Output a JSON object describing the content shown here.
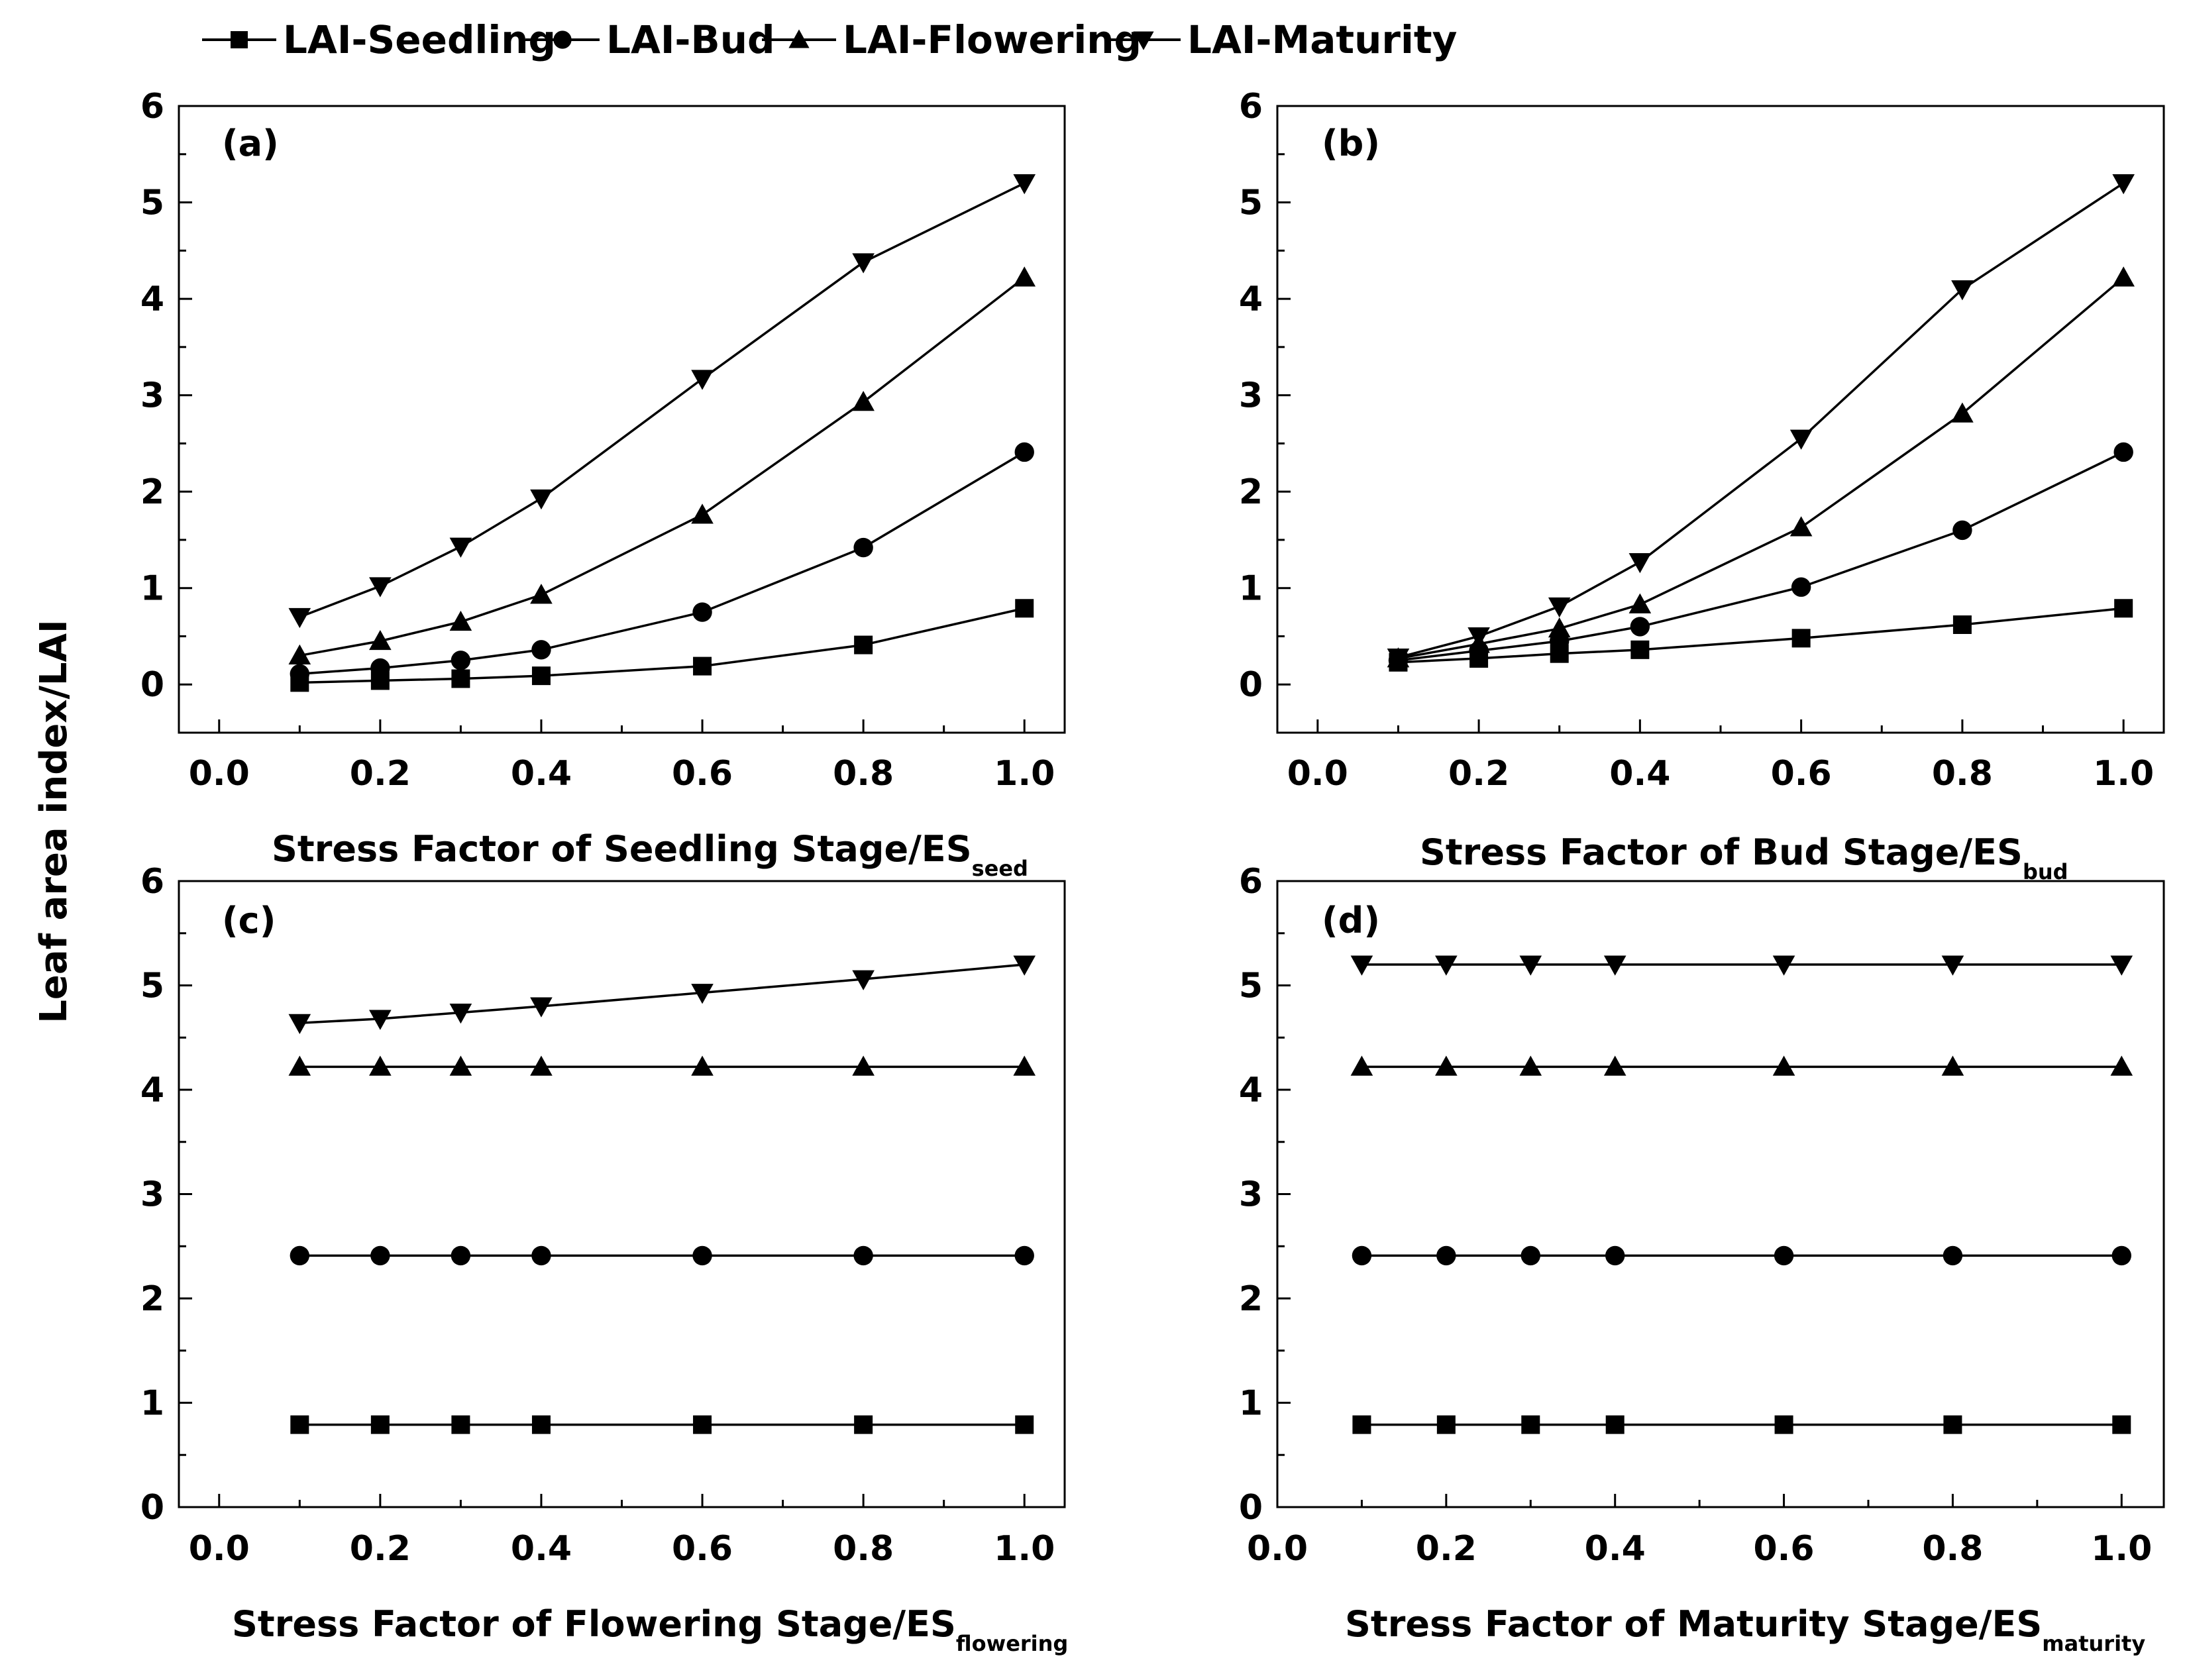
{
  "y_axis_label": "Leaf area index/LAI",
  "legend": [
    {
      "name": "LAI-Seedling",
      "marker": "square"
    },
    {
      "name": "LAI-Bud",
      "marker": "circle"
    },
    {
      "name": "LAI-Flowering",
      "marker": "triangle-up"
    },
    {
      "name": "LAI-Maturity",
      "marker": "triangle-down"
    }
  ],
  "chart_data": [
    {
      "type": "line",
      "panel": "(a)",
      "xlabel": "Stress Factor of Seedling Stage/ES",
      "xlabel_sub": "seed",
      "xlim": [
        -0.05,
        1.05
      ],
      "ylim": [
        -0.5,
        6
      ],
      "xticks": [
        "0.0",
        "0.2",
        "0.4",
        "0.6",
        "0.8",
        "1.0"
      ],
      "yticks": [
        "0",
        "1",
        "2",
        "3",
        "4",
        "5",
        "6"
      ],
      "x": [
        0.1,
        0.2,
        0.3,
        0.4,
        0.6,
        0.8,
        1.0
      ],
      "series": [
        {
          "name": "LAI-Seedling",
          "values": [
            0.02,
            0.04,
            0.06,
            0.09,
            0.19,
            0.41,
            0.79
          ]
        },
        {
          "name": "LAI-Bud",
          "values": [
            0.11,
            0.17,
            0.25,
            0.36,
            0.75,
            1.42,
            2.41
          ]
        },
        {
          "name": "LAI-Flowering",
          "values": [
            0.3,
            0.45,
            0.65,
            0.93,
            1.76,
            2.93,
            4.22
          ]
        },
        {
          "name": "LAI-Maturity",
          "values": [
            0.7,
            1.02,
            1.43,
            1.93,
            3.17,
            4.38,
            5.2
          ]
        }
      ]
    },
    {
      "type": "line",
      "panel": "(b)",
      "xlabel": "Stress Factor of Bud Stage/ES",
      "xlabel_sub": "bud",
      "xlim": [
        -0.05,
        1.05
      ],
      "ylim": [
        -0.5,
        6
      ],
      "xticks": [
        "0.0",
        "0.2",
        "0.4",
        "0.6",
        "0.8",
        "1.0"
      ],
      "yticks": [
        "0",
        "1",
        "2",
        "3",
        "4",
        "5",
        "6"
      ],
      "x": [
        0.1,
        0.2,
        0.3,
        0.4,
        0.6,
        0.8,
        1.0
      ],
      "series": [
        {
          "name": "LAI-Seedling",
          "values": [
            0.23,
            0.27,
            0.32,
            0.36,
            0.48,
            0.62,
            0.79
          ]
        },
        {
          "name": "LAI-Bud",
          "values": [
            0.25,
            0.35,
            0.45,
            0.6,
            1.01,
            1.6,
            2.41
          ]
        },
        {
          "name": "LAI-Flowering",
          "values": [
            0.27,
            0.42,
            0.58,
            0.83,
            1.63,
            2.81,
            4.22
          ]
        },
        {
          "name": "LAI-Maturity",
          "values": [
            0.28,
            0.5,
            0.81,
            1.27,
            2.55,
            4.1,
            5.2
          ]
        }
      ]
    },
    {
      "type": "line",
      "panel": "(c)",
      "xlabel": "Stress Factor of Flowering Stage/ES",
      "xlabel_sub": "flowering",
      "xlim": [
        -0.05,
        1.05
      ],
      "ylim": [
        0,
        6
      ],
      "xticks": [
        "0.0",
        "0.2",
        "0.4",
        "0.6",
        "0.8",
        "1.0"
      ],
      "yticks": [
        "0",
        "1",
        "2",
        "3",
        "4",
        "5",
        "6"
      ],
      "x": [
        0.1,
        0.2,
        0.3,
        0.4,
        0.6,
        0.8,
        1.0
      ],
      "series": [
        {
          "name": "LAI-Seedling",
          "values": [
            0.79,
            0.79,
            0.79,
            0.79,
            0.79,
            0.79,
            0.79
          ]
        },
        {
          "name": "LAI-Bud",
          "values": [
            2.41,
            2.41,
            2.41,
            2.41,
            2.41,
            2.41,
            2.41
          ]
        },
        {
          "name": "LAI-Flowering",
          "values": [
            4.22,
            4.22,
            4.22,
            4.22,
            4.22,
            4.22,
            4.22
          ]
        },
        {
          "name": "LAI-Maturity",
          "values": [
            4.64,
            4.68,
            4.74,
            4.8,
            4.93,
            5.06,
            5.2
          ]
        }
      ]
    },
    {
      "type": "line",
      "panel": "(d)",
      "xlabel": "Stress Factor of Maturity Stage/ES",
      "xlabel_sub": "maturity",
      "xlim": [
        0.0,
        1.05
      ],
      "ylim": [
        0,
        6
      ],
      "xticks": [
        "0.0",
        "0.2",
        "0.4",
        "0.6",
        "0.8",
        "1.0"
      ],
      "yticks": [
        "0",
        "1",
        "2",
        "3",
        "4",
        "5",
        "6"
      ],
      "x": [
        0.1,
        0.2,
        0.3,
        0.4,
        0.6,
        0.8,
        1.0
      ],
      "series": [
        {
          "name": "LAI-Seedling",
          "values": [
            0.79,
            0.79,
            0.79,
            0.79,
            0.79,
            0.79,
            0.79
          ]
        },
        {
          "name": "LAI-Bud",
          "values": [
            2.41,
            2.41,
            2.41,
            2.41,
            2.41,
            2.41,
            2.41
          ]
        },
        {
          "name": "LAI-Flowering",
          "values": [
            4.22,
            4.22,
            4.22,
            4.22,
            4.22,
            4.22,
            4.22
          ]
        },
        {
          "name": "LAI-Maturity",
          "values": [
            5.2,
            5.2,
            5.2,
            5.2,
            5.2,
            5.2,
            5.2
          ]
        }
      ]
    }
  ]
}
